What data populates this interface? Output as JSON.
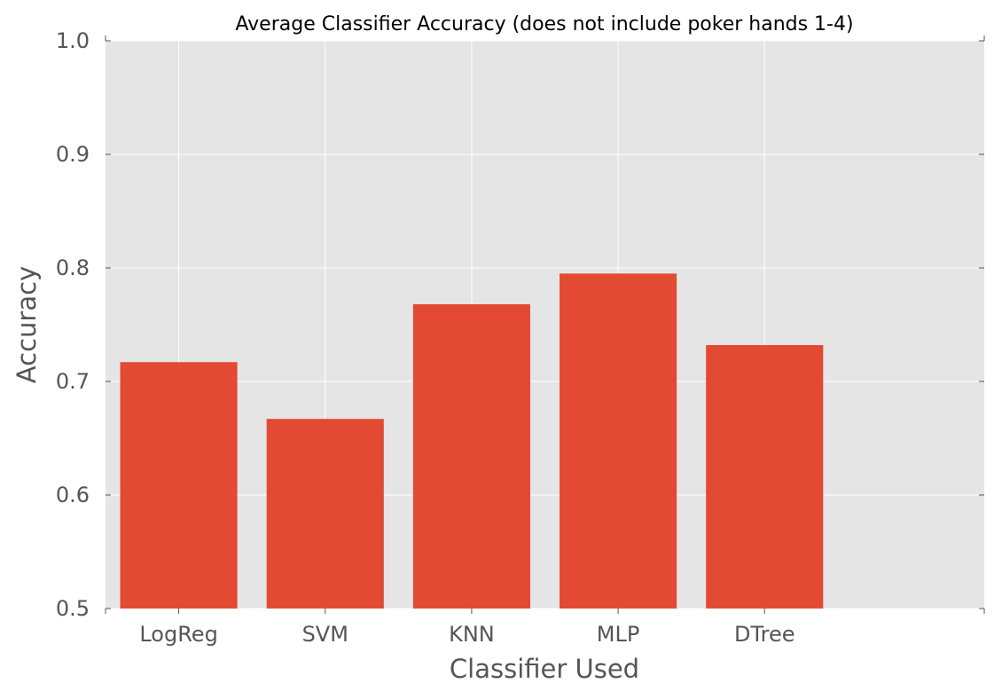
{
  "chart_data": {
    "type": "bar",
    "title": "Average Classifier Accuracy (does not include poker hands 1-4)",
    "xlabel": "Classifier Used",
    "ylabel": "Accuracy",
    "categories": [
      "LogReg",
      "SVM",
      "KNN",
      "MLP",
      "DTree"
    ],
    "values": [
      0.717,
      0.667,
      0.768,
      0.795,
      0.732
    ],
    "ylim": [
      0.5,
      1.0
    ],
    "yticks": [
      "0.5",
      "0.6",
      "0.7",
      "0.8",
      "0.9",
      "1.0"
    ],
    "grid": true,
    "legend": "none",
    "style": {
      "background": "#e5e5e5",
      "bar_color": "#e24a33",
      "grid_color": "#ffffff"
    }
  }
}
